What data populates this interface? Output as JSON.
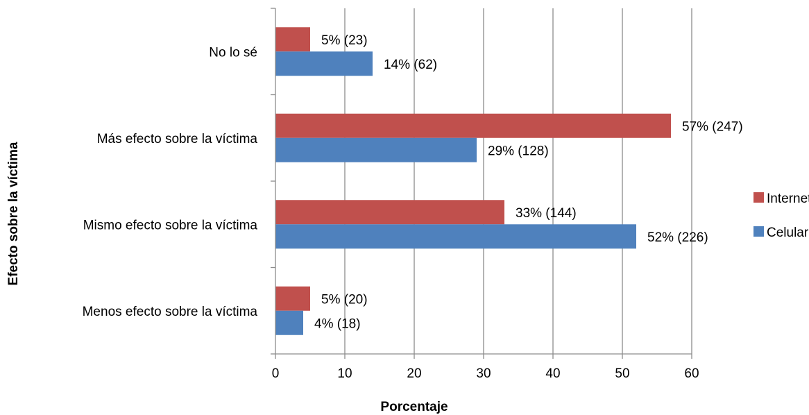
{
  "chart_data": {
    "type": "bar",
    "orientation": "horizontal",
    "title": "",
    "xlabel": "Porcentaje",
    "ylabel": "Efecto sobre la víctima",
    "categories": [
      "No lo sé",
      "Más efecto sobre la víctima",
      "Mismo efecto sobre la víctima",
      "Menos efecto sobre la víctima"
    ],
    "xlim": [
      0,
      60
    ],
    "xticks": [
      0,
      10,
      20,
      30,
      40,
      50,
      60
    ],
    "grid": "vertical",
    "legend_position": "right",
    "series": [
      {
        "name": "Internet",
        "color": "#C0504D",
        "values": [
          5,
          57,
          33,
          5
        ],
        "labels": [
          "5% (23)",
          "57% (247)",
          "33% (144)",
          "5% (20)"
        ]
      },
      {
        "name": "Celular",
        "color": "#4F81BD",
        "values": [
          14,
          29,
          52,
          4
        ],
        "labels": [
          "14% (62)",
          "29% (128)",
          "52% (226)",
          "4% (18)"
        ]
      }
    ]
  }
}
